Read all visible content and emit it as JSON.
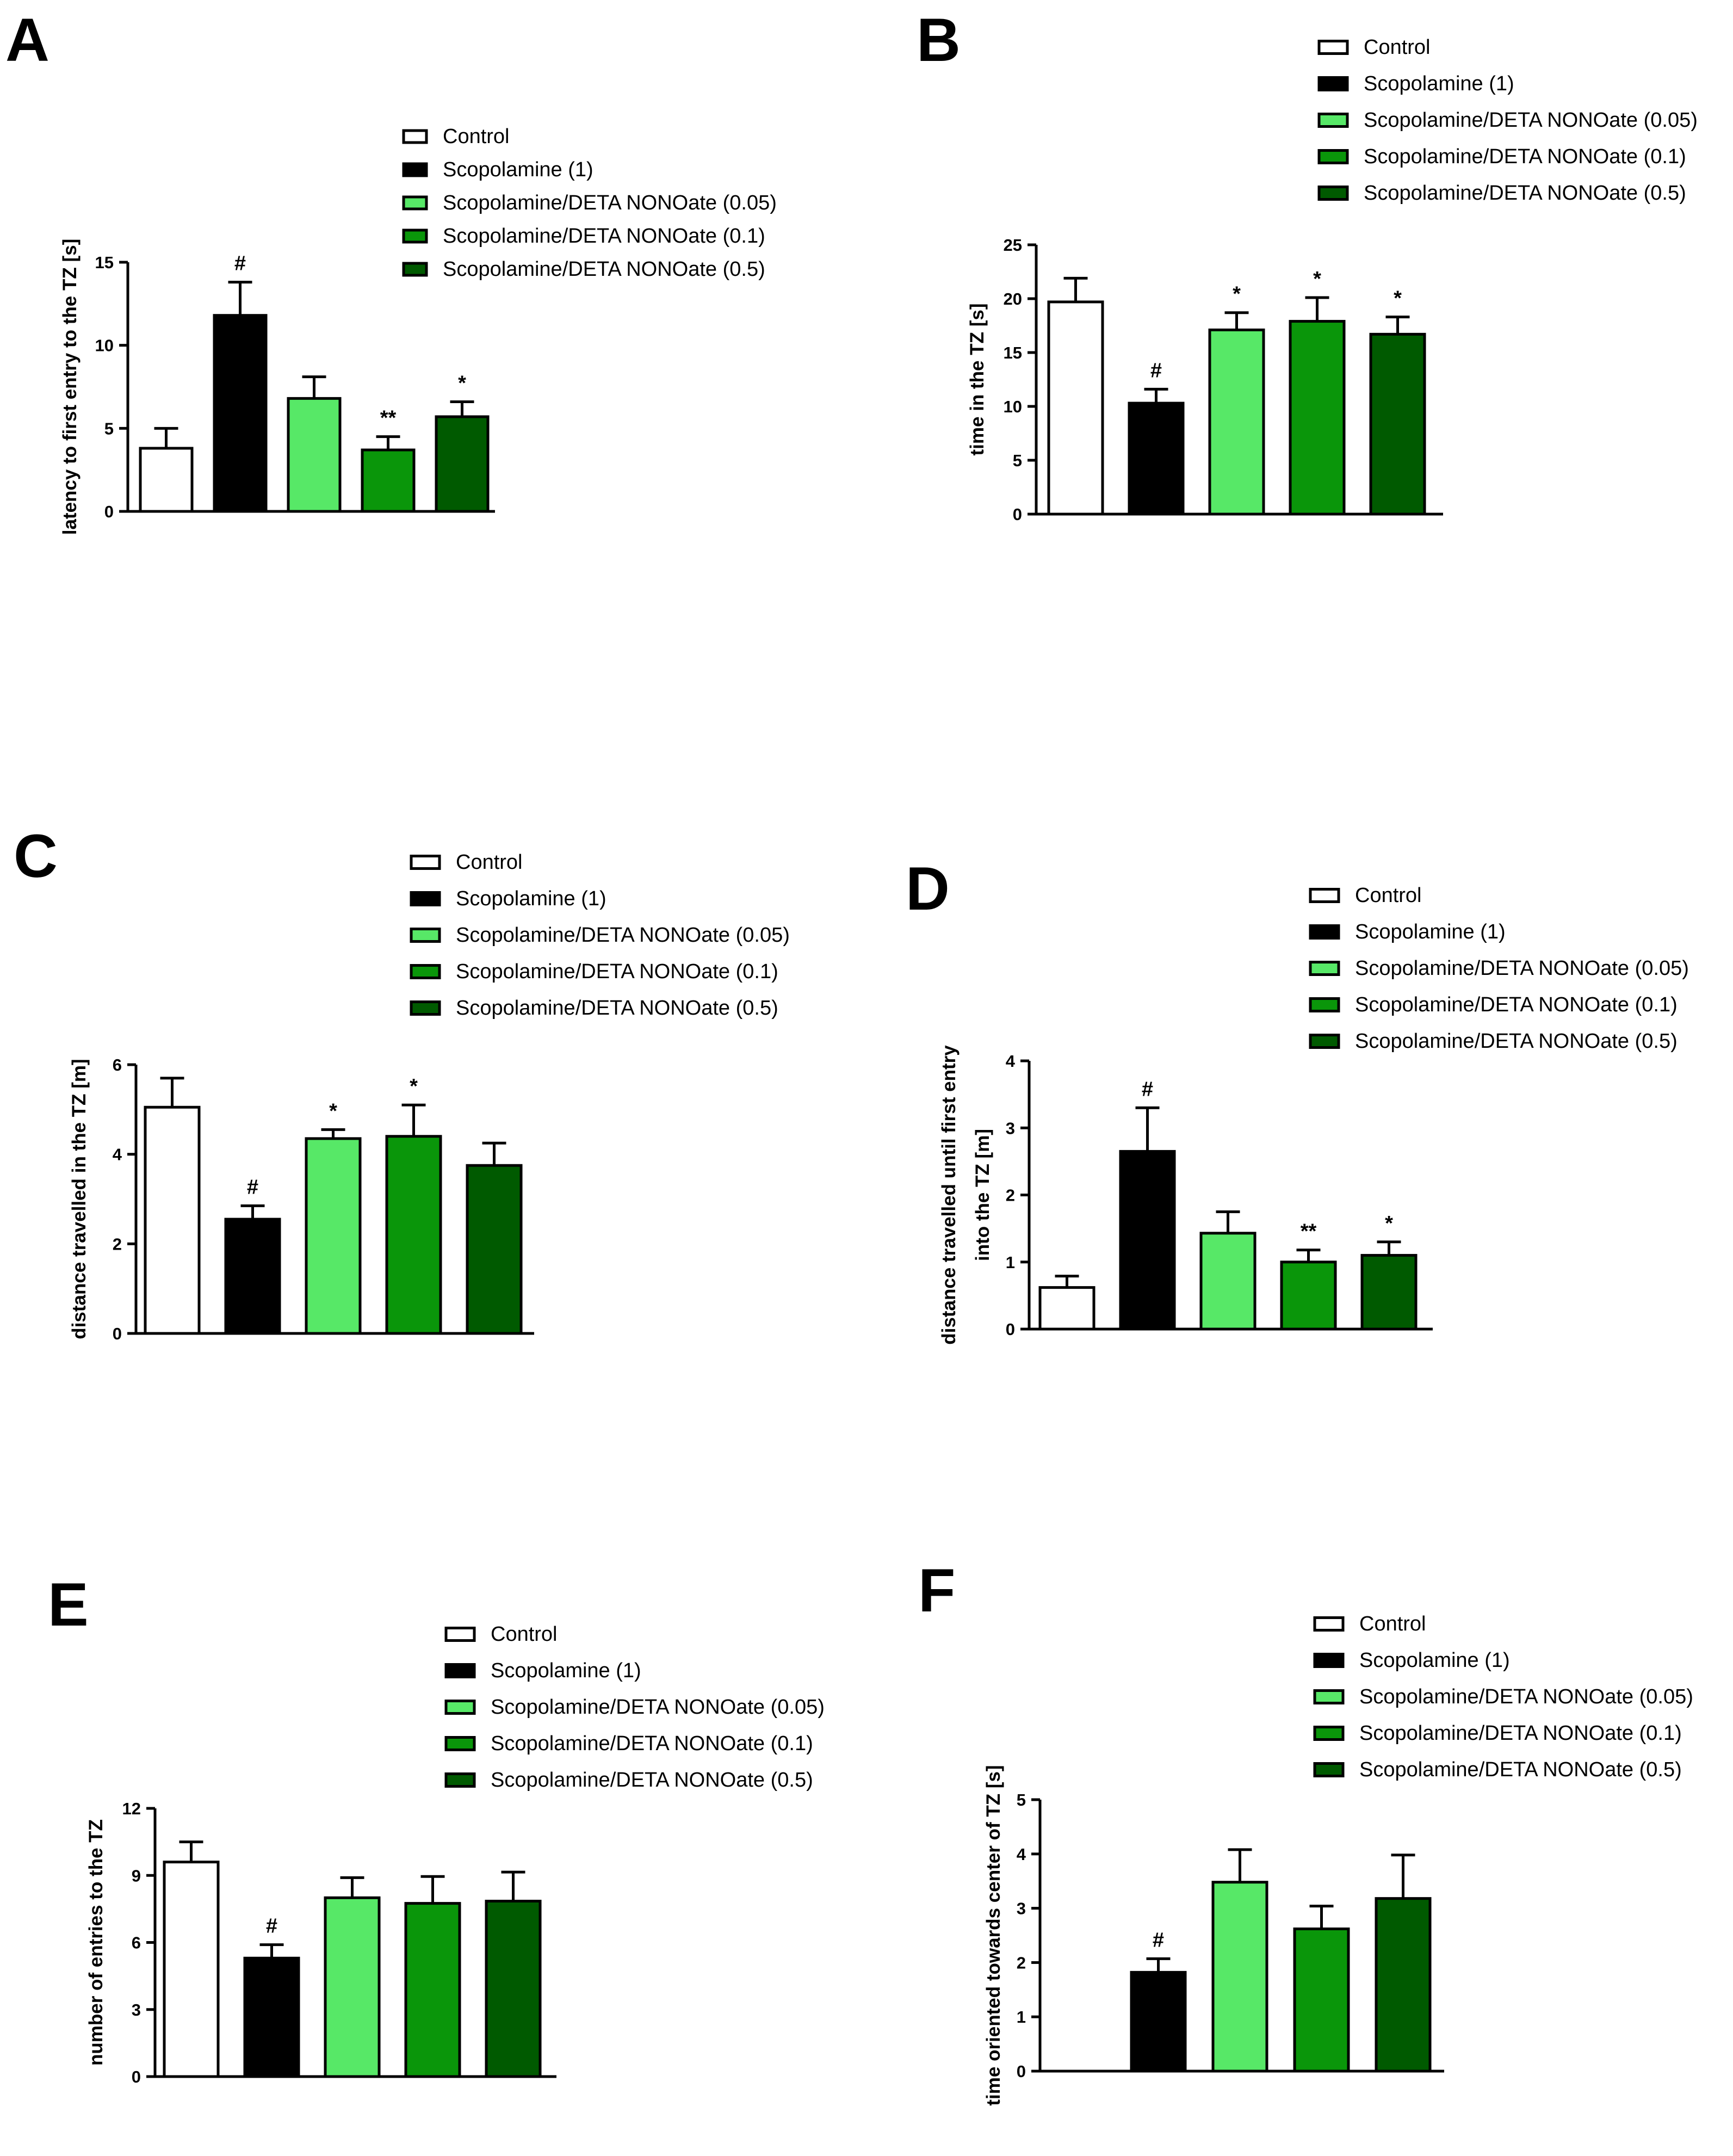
{
  "legend": {
    "labels": [
      "Control",
      "Scopolamine (1)",
      "Scopolamine/DETA NONOate (0.05)",
      "Scopolamine/DETA NONOate (0.1)",
      "Scopolamine/DETA NONOate (0.5)"
    ],
    "colors": [
      "#ffffff",
      "#000000",
      "#57e867",
      "#0a960a",
      "#005a00"
    ]
  },
  "chart_data": [
    {
      "panel": "A",
      "type": "bar",
      "categories": [
        "Control",
        "Scopolamine (1)",
        "Scopolamine/DETA NONOate (0.05)",
        "Scopolamine/DETA NONOate (0.1)",
        "Scopolamine/DETA NONOate (0.5)"
      ],
      "values": [
        3.8,
        11.8,
        6.8,
        3.7,
        5.7
      ],
      "errors": [
        1.2,
        2.0,
        1.3,
        0.8,
        0.9
      ],
      "significance": [
        "",
        "#",
        "",
        "**",
        "*"
      ],
      "ylabel": "latency to first entry to the TZ [s]",
      "ylim": [
        0,
        15
      ],
      "yticks": [
        0,
        5,
        10,
        15
      ]
    },
    {
      "panel": "B",
      "type": "bar",
      "categories": [
        "Control",
        "Scopolamine (1)",
        "Scopolamine/DETA NONOate (0.05)",
        "Scopolamine/DETA NONOate (0.1)",
        "Scopolamine/DETA NONOate (0.5)"
      ],
      "values": [
        19.7,
        10.3,
        17.1,
        17.9,
        16.7
      ],
      "errors": [
        2.2,
        1.3,
        1.6,
        2.2,
        1.6
      ],
      "significance": [
        "",
        "#",
        "*",
        "*",
        "*"
      ],
      "ylabel": "time in the TZ [s]",
      "ylim": [
        0,
        25
      ],
      "yticks": [
        0,
        5,
        10,
        15,
        20,
        25
      ]
    },
    {
      "panel": "C",
      "type": "bar",
      "categories": [
        "Control",
        "Scopolamine (1)",
        "Scopolamine/DETA NONOate (0.05)",
        "Scopolamine/DETA NONOate (0.1)",
        "Scopolamine/DETA NONOate (0.5)"
      ],
      "values": [
        5.05,
        2.55,
        4.35,
        4.4,
        3.75
      ],
      "errors": [
        0.65,
        0.3,
        0.2,
        0.7,
        0.5
      ],
      "significance": [
        "",
        "#",
        "*",
        "*",
        ""
      ],
      "ylabel": "distance travelled in the TZ [m]",
      "ylim": [
        0,
        6
      ],
      "yticks": [
        0,
        2,
        4,
        6
      ]
    },
    {
      "panel": "D",
      "type": "bar",
      "categories": [
        "Control",
        "Scopolamine (1)",
        "Scopolamine/DETA NONOate (0.05)",
        "Scopolamine/DETA NONOate (0.1)",
        "Scopolamine/DETA NONOate (0.5)"
      ],
      "values": [
        0.62,
        2.65,
        1.43,
        1.0,
        1.1
      ],
      "errors": [
        0.17,
        0.65,
        0.32,
        0.18,
        0.2
      ],
      "significance": [
        "",
        "#",
        "",
        "**",
        "*"
      ],
      "ylabel": [
        "distance travelled until first entry",
        "into the TZ [m]"
      ],
      "ylim": [
        0,
        4
      ],
      "yticks": [
        0,
        1,
        2,
        3,
        4
      ]
    },
    {
      "panel": "E",
      "type": "bar",
      "categories": [
        "Control",
        "Scopolamine (1)",
        "Scopolamine/DETA NONOate (0.05)",
        "Scopolamine/DETA NONOate (0.1)",
        "Scopolamine/DETA NONOate (0.5)"
      ],
      "values": [
        9.6,
        5.3,
        8.0,
        7.75,
        7.85
      ],
      "errors": [
        0.9,
        0.6,
        0.9,
        1.2,
        1.3
      ],
      "significance": [
        "",
        "#",
        "",
        "",
        ""
      ],
      "ylabel": "number of entries to the TZ",
      "ylim": [
        0,
        12
      ],
      "yticks": [
        0,
        3,
        6,
        9,
        12
      ]
    },
    {
      "panel": "F",
      "type": "bar",
      "categories": [
        "Control",
        "Scopolamine (1)",
        "Scopolamine/DETA NONOate (0.05)",
        "Scopolamine/DETA NONOate (0.1)",
        "Scopolamine/DETA NONOate (0.5)"
      ],
      "values": [
        0,
        1.82,
        3.48,
        2.62,
        3.18
      ],
      "errors": [
        0,
        0.25,
        0.6,
        0.42,
        0.8
      ],
      "significance": [
        "",
        "#",
        "",
        "",
        ""
      ],
      "ylabel": "time oriented towards center of TZ [s]",
      "ylim": [
        0,
        5
      ],
      "yticks": [
        0,
        1,
        2,
        3,
        4,
        5
      ]
    }
  ]
}
